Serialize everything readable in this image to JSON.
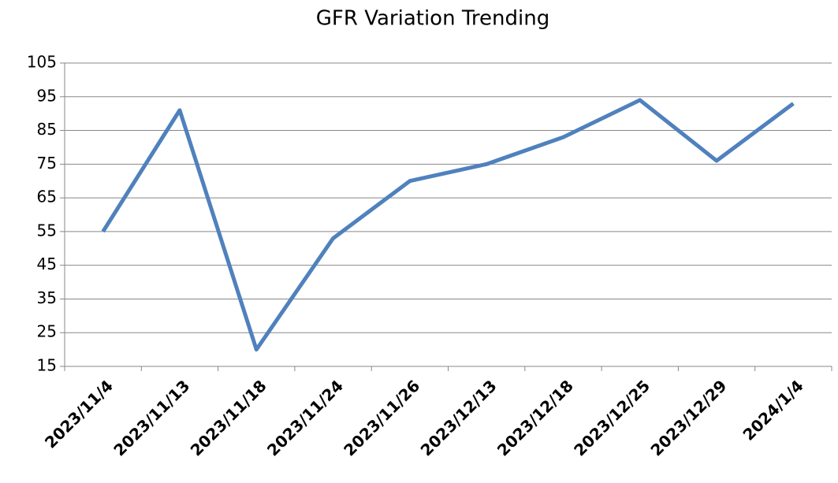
{
  "chart_data": {
    "type": "line",
    "title": "GFR Variation Trending",
    "categories": [
      "2023/11/4",
      "2023/11/13",
      "2023/11/18",
      "2023/11/24",
      "2023/11/26",
      "2023/12/13",
      "2023/12/18",
      "2023/12/25",
      "2023/12/29",
      "2024/1/4"
    ],
    "series": [
      {
        "color": "#4f81bd",
        "values": [
          55,
          91,
          20,
          53,
          70,
          75,
          83,
          94,
          76,
          93
        ]
      }
    ],
    "ylim": [
      15,
      105
    ],
    "yticks": [
      15,
      25,
      35,
      45,
      55,
      65,
      75,
      85,
      95,
      105
    ],
    "grid": true
  }
}
